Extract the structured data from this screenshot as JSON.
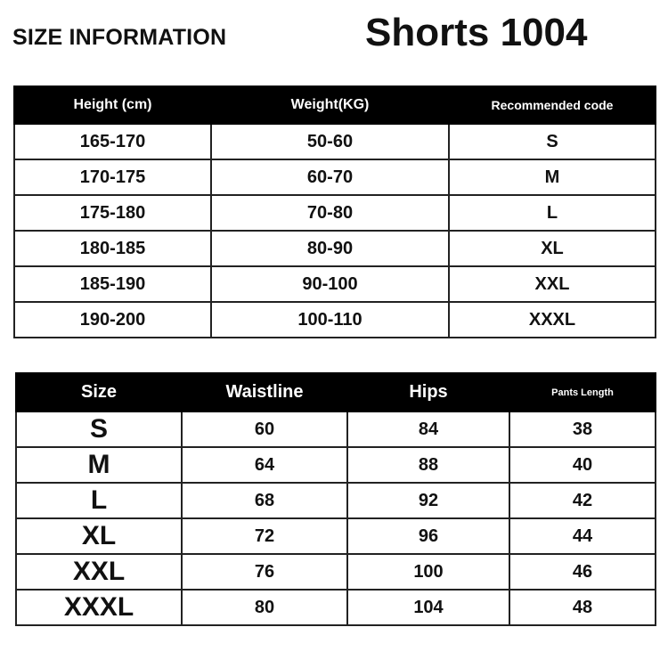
{
  "header": {
    "title": "SIZE INFORMATION",
    "product": "Shorts 1004"
  },
  "recommendation_table": {
    "columns": [
      "Height (cm)",
      "Weight(KG)",
      "Recommended code"
    ],
    "rows": [
      [
        "165-170",
        "50-60",
        "S"
      ],
      [
        "170-175",
        "60-70",
        "M"
      ],
      [
        "175-180",
        "70-80",
        "L"
      ],
      [
        "180-185",
        "80-90",
        "XL"
      ],
      [
        "185-190",
        "90-100",
        "XXL"
      ],
      [
        "190-200",
        "100-110",
        "XXXL"
      ]
    ]
  },
  "measurement_table": {
    "columns": [
      "Size",
      "Waistline",
      "Hips",
      "Pants Length"
    ],
    "rows": [
      [
        "S",
        "60",
        "84",
        "38"
      ],
      [
        "M",
        "64",
        "88",
        "40"
      ],
      [
        "L",
        "68",
        "92",
        "42"
      ],
      [
        "XL",
        "72",
        "96",
        "44"
      ],
      [
        "XXL",
        "76",
        "100",
        "46"
      ],
      [
        "XXXL",
        "80",
        "104",
        "48"
      ]
    ]
  }
}
